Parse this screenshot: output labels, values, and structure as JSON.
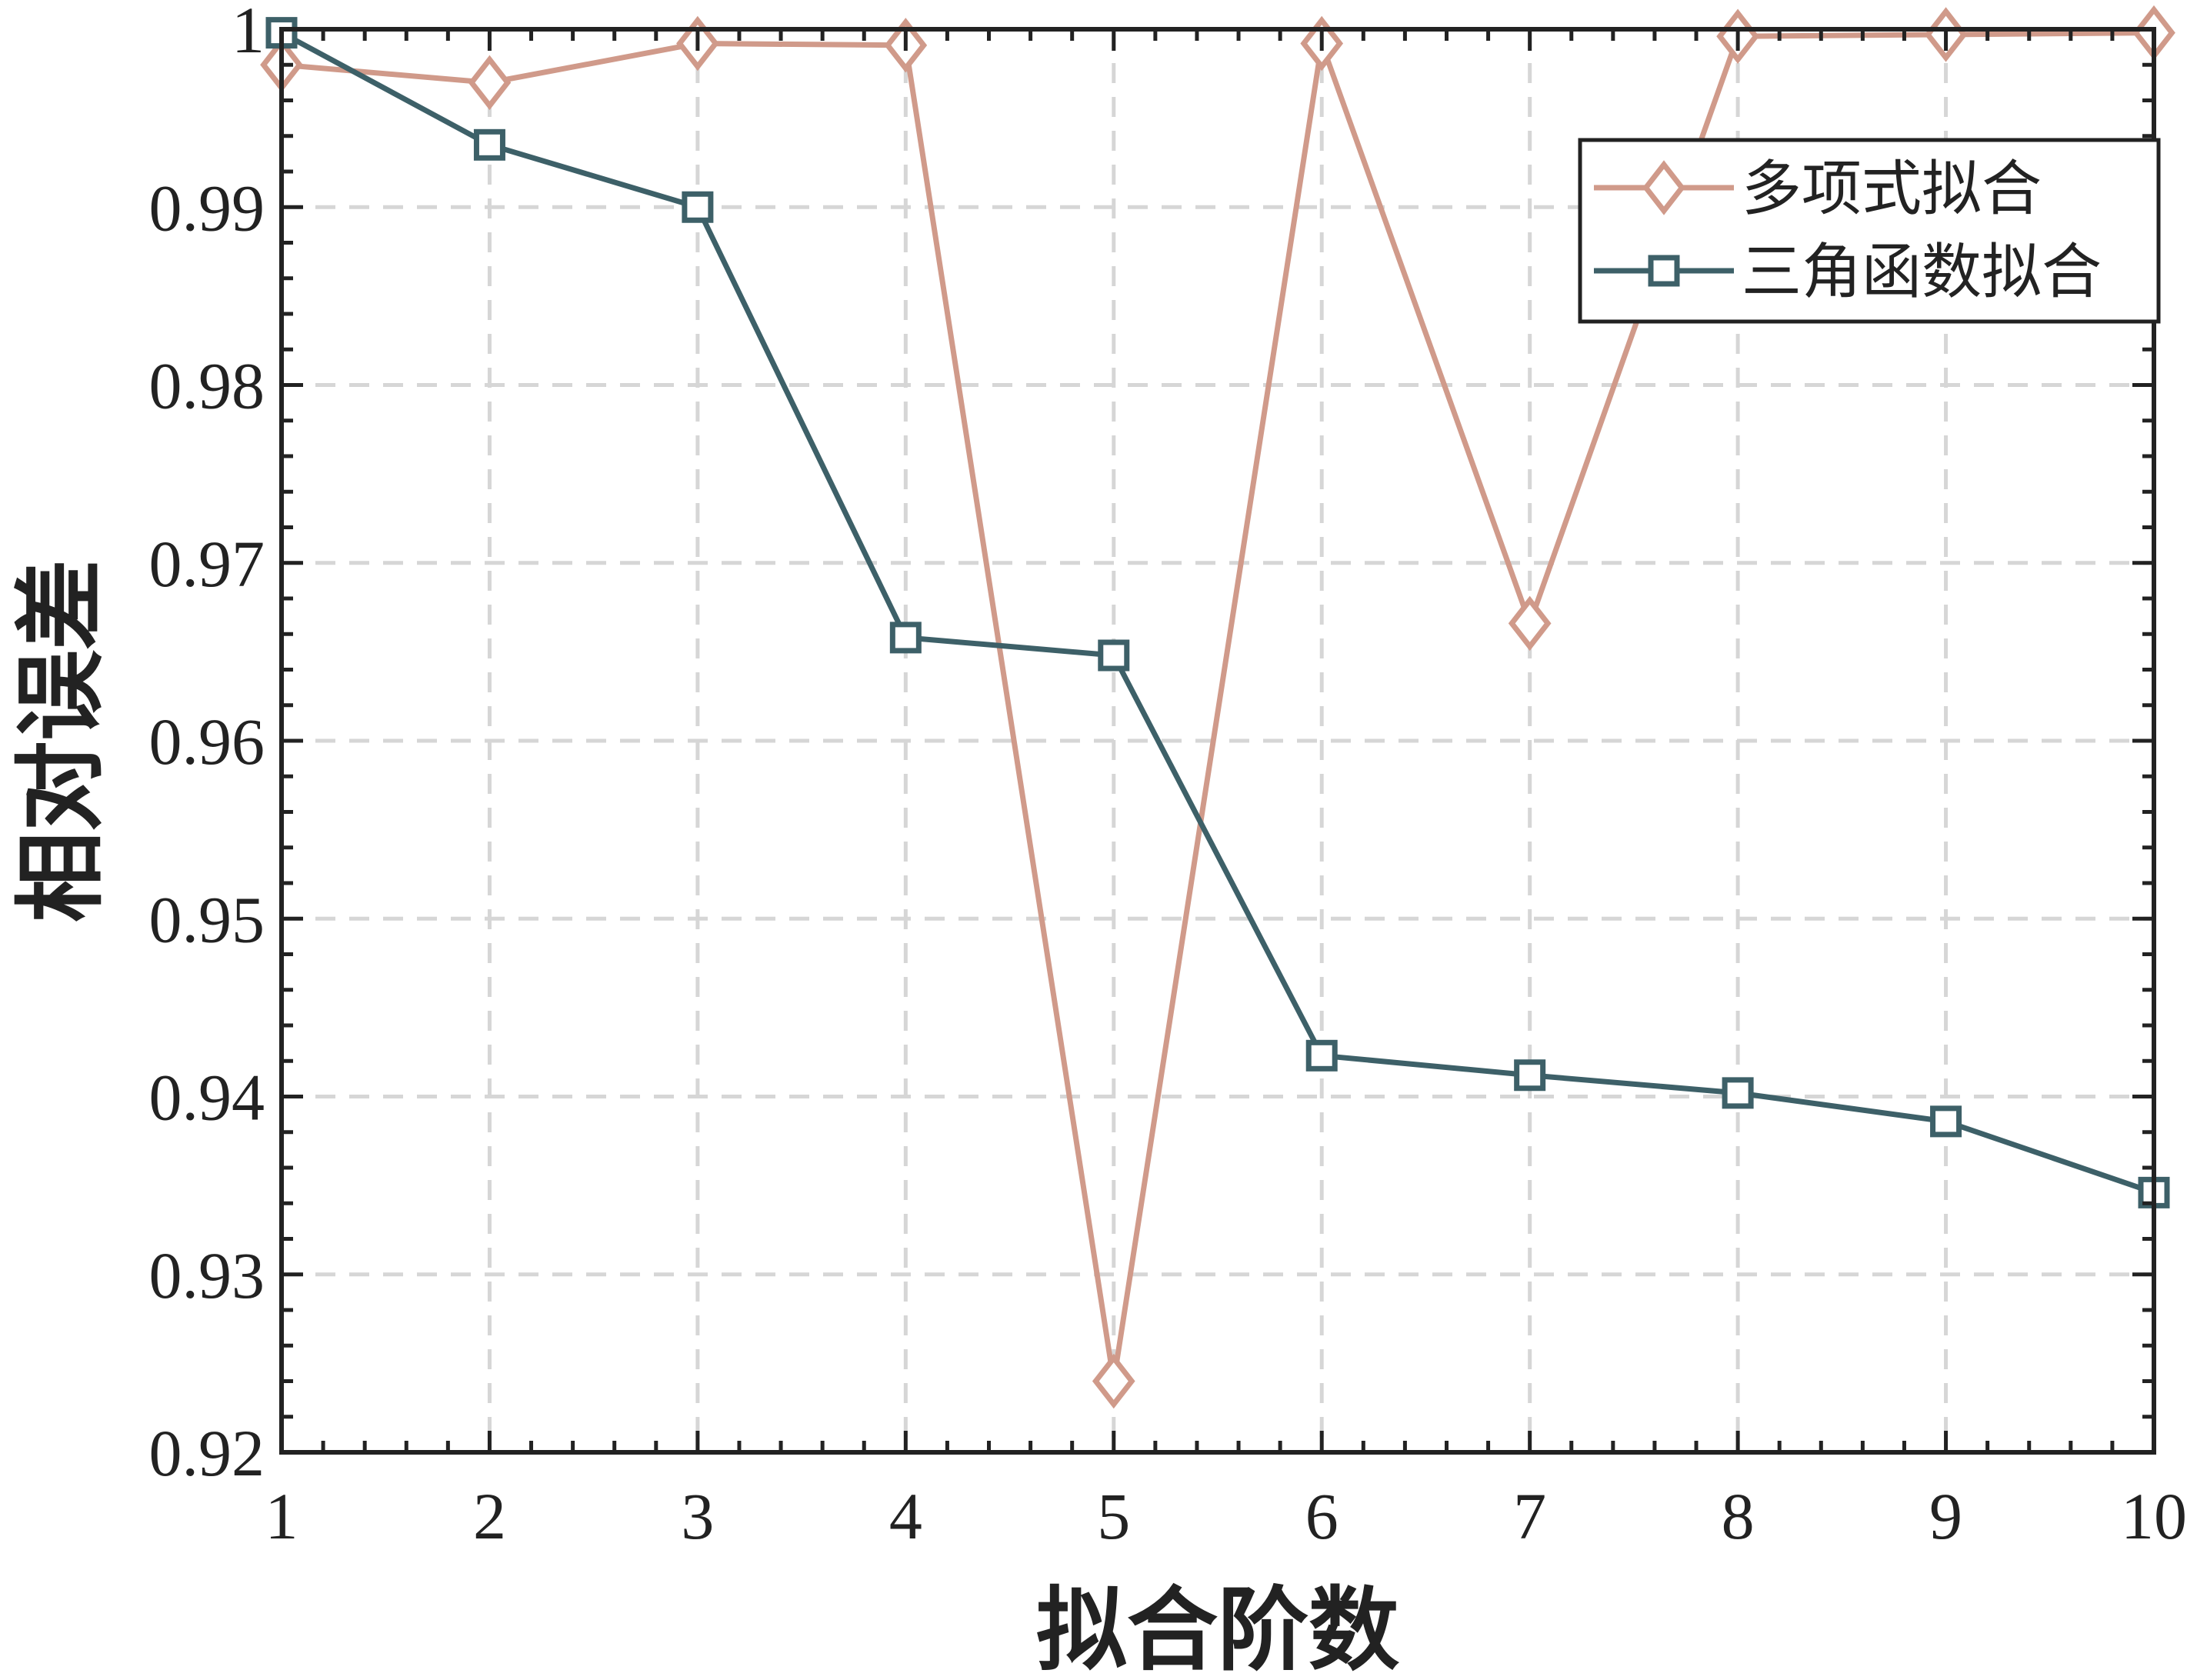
{
  "chart_data": {
    "type": "line",
    "xlabel": "拟合阶数",
    "ylabel": "相对误差",
    "xlim": [
      1,
      10
    ],
    "ylim": [
      0.92,
      1.0
    ],
    "x": [
      1,
      2,
      3,
      4,
      5,
      6,
      7,
      8,
      9,
      10
    ],
    "x_ticks": [
      "1",
      "2",
      "3",
      "4",
      "5",
      "6",
      "7",
      "8",
      "9",
      "10"
    ],
    "y_ticks": [
      "0.92",
      "0.93",
      "0.94",
      "0.95",
      "0.96",
      "0.97",
      "0.98",
      "0.99",
      "1"
    ],
    "y_tick_values": [
      0.92,
      0.93,
      0.94,
      0.95,
      0.96,
      0.97,
      0.98,
      0.99,
      1.0
    ],
    "grid": true,
    "legend_position": "top-right",
    "series": [
      {
        "name": "多项式拟合",
        "color": "#d09a8a",
        "marker": "diamond",
        "values": [
          0.998,
          0.997,
          0.9992,
          0.9991,
          0.924,
          0.9992,
          0.9666,
          0.9996,
          0.9997,
          0.9998
        ]
      },
      {
        "name": "三角函数拟合",
        "color": "#3d6068",
        "marker": "square",
        "values": [
          0.9998,
          0.9935,
          0.99,
          0.9658,
          0.9648,
          0.9423,
          0.9412,
          0.9402,
          0.9386,
          0.9346
        ]
      }
    ]
  }
}
